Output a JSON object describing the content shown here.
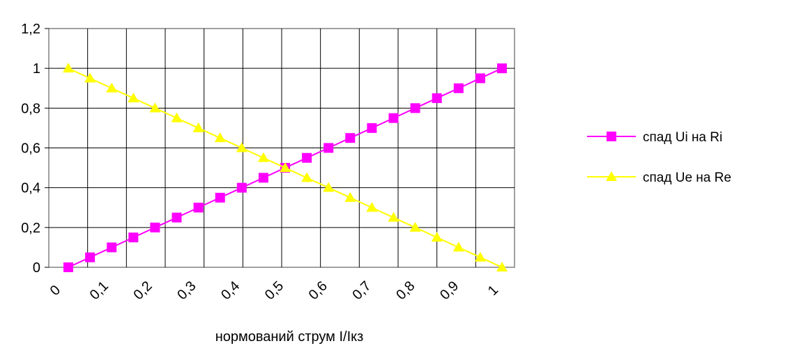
{
  "chart_data": {
    "type": "line",
    "title": "",
    "xlabel": "нормований струм I/Iкз",
    "ylabel": "",
    "x_tick_labels": [
      "0",
      "0,1",
      "0,2",
      "0,3",
      "0,4",
      "0,5",
      "0,6",
      "0,7",
      "0,8",
      "0,9",
      "1"
    ],
    "y_tick_labels": [
      "0",
      "0,2",
      "0,4",
      "0,6",
      "0,8",
      "1",
      "1,2"
    ],
    "ylim": [
      0,
      1.2
    ],
    "xlim": [
      0,
      1
    ],
    "grid": true,
    "legend_position": "right",
    "x": [
      0,
      0.05,
      0.1,
      0.15,
      0.2,
      0.25,
      0.3,
      0.35,
      0.4,
      0.45,
      0.5,
      0.55,
      0.6,
      0.65,
      0.7,
      0.75,
      0.8,
      0.85,
      0.9,
      0.95,
      1
    ],
    "series": [
      {
        "name": "спад Ui на Ri",
        "color": "#ff00ff",
        "marker": "square",
        "values": [
          0,
          0.05,
          0.1,
          0.15,
          0.2,
          0.25,
          0.3,
          0.35,
          0.4,
          0.45,
          0.5,
          0.55,
          0.6,
          0.65,
          0.7,
          0.75,
          0.8,
          0.85,
          0.9,
          0.95,
          1
        ]
      },
      {
        "name": "спад Ue на Re",
        "color": "#ffff00",
        "marker": "triangle",
        "values": [
          1,
          0.95,
          0.9,
          0.85,
          0.8,
          0.75,
          0.7,
          0.65,
          0.6,
          0.55,
          0.5,
          0.45,
          0.4,
          0.35,
          0.3,
          0.25,
          0.2,
          0.15,
          0.1,
          0.05,
          0
        ]
      }
    ]
  }
}
